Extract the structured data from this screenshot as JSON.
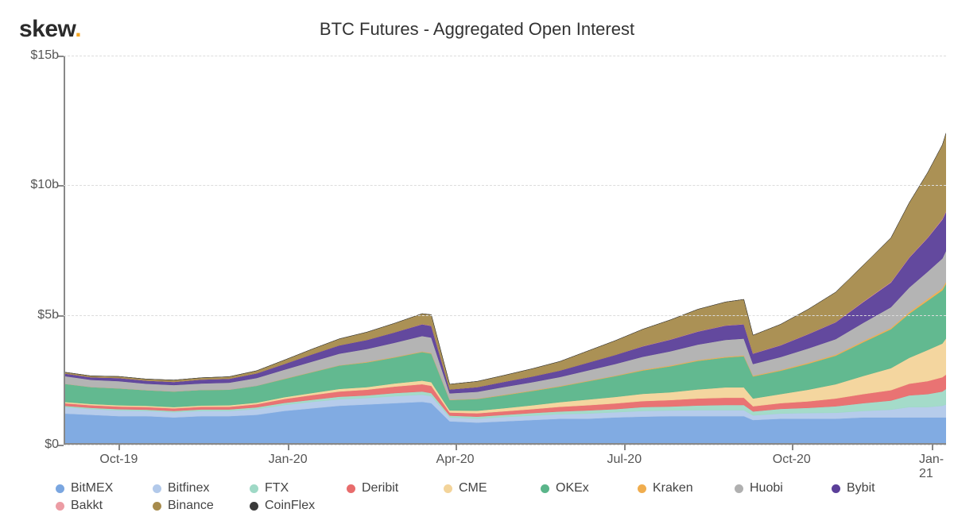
{
  "logo": {
    "text": "skew",
    "dot": "."
  },
  "title": "BTC Futures - Aggregated Open Interest",
  "chart": {
    "type": "area",
    "background_color": "#ffffff",
    "grid_color": "#dcdcdc",
    "axis_color": "#888888",
    "text_color": "#555555",
    "title_fontsize": 22,
    "axis_fontsize": 16,
    "legend_fontsize": 16,
    "y": {
      "min": 0,
      "max": 15,
      "ticks": [
        0,
        5,
        10,
        15
      ],
      "tick_labels": [
        "$0",
        "$5b",
        "$10b",
        "$15b"
      ]
    },
    "x": {
      "min": 0,
      "max": 480,
      "ticks": [
        30,
        122,
        213,
        305,
        396,
        472
      ],
      "tick_labels": [
        "Oct-19",
        "Jan-20",
        "Apr-20",
        "Jul-20",
        "Oct-20",
        "Jan-21"
      ]
    },
    "sample_x": [
      0,
      15,
      30,
      45,
      60,
      75,
      90,
      105,
      120,
      135,
      150,
      165,
      180,
      195,
      200,
      210,
      225,
      240,
      255,
      270,
      285,
      300,
      315,
      330,
      345,
      360,
      370,
      375,
      390,
      405,
      420,
      435,
      450,
      460,
      470,
      478,
      480
    ],
    "series": [
      {
        "key": "bitmex",
        "label": "BitMEX",
        "color": "#7aa6e0",
        "values": [
          1.2,
          1.15,
          1.1,
          1.1,
          1.05,
          1.1,
          1.1,
          1.15,
          1.3,
          1.4,
          1.5,
          1.55,
          1.6,
          1.65,
          1.6,
          0.9,
          0.85,
          0.9,
          0.95,
          1.0,
          1.0,
          1.05,
          1.08,
          1.1,
          1.1,
          1.1,
          1.1,
          0.95,
          1.0,
          1.0,
          1.0,
          1.05,
          1.05,
          1.05,
          1.05,
          1.05,
          1.05
        ]
      },
      {
        "key": "bitfinex",
        "label": "Bitfinex",
        "color": "#b2c9ea",
        "values": [
          0.25,
          0.22,
          0.22,
          0.2,
          0.2,
          0.2,
          0.2,
          0.22,
          0.23,
          0.25,
          0.25,
          0.25,
          0.27,
          0.28,
          0.27,
          0.15,
          0.15,
          0.17,
          0.17,
          0.18,
          0.2,
          0.2,
          0.22,
          0.22,
          0.23,
          0.23,
          0.23,
          0.18,
          0.2,
          0.22,
          0.23,
          0.25,
          0.3,
          0.4,
          0.4,
          0.45,
          0.5
        ]
      },
      {
        "key": "ftx",
        "label": "FTX",
        "color": "#9fd9c6",
        "values": [
          0.05,
          0.05,
          0.05,
          0.05,
          0.05,
          0.06,
          0.06,
          0.07,
          0.08,
          0.08,
          0.1,
          0.1,
          0.12,
          0.12,
          0.12,
          0.07,
          0.08,
          0.08,
          0.1,
          0.1,
          0.12,
          0.12,
          0.15,
          0.15,
          0.18,
          0.2,
          0.2,
          0.15,
          0.18,
          0.2,
          0.25,
          0.3,
          0.35,
          0.45,
          0.5,
          0.55,
          0.6
        ]
      },
      {
        "key": "deribit",
        "label": "Deribit",
        "color": "#e86c6c",
        "values": [
          0.1,
          0.1,
          0.1,
          0.1,
          0.1,
          0.1,
          0.1,
          0.12,
          0.15,
          0.18,
          0.2,
          0.22,
          0.25,
          0.28,
          0.28,
          0.12,
          0.13,
          0.14,
          0.15,
          0.18,
          0.2,
          0.22,
          0.23,
          0.25,
          0.27,
          0.28,
          0.28,
          0.2,
          0.22,
          0.25,
          0.3,
          0.35,
          0.4,
          0.45,
          0.5,
          0.55,
          0.55
        ]
      },
      {
        "key": "cme",
        "label": "CME",
        "color": "#f3d49a",
        "values": [
          0.05,
          0.05,
          0.05,
          0.05,
          0.05,
          0.05,
          0.06,
          0.06,
          0.07,
          0.08,
          0.1,
          0.1,
          0.12,
          0.14,
          0.14,
          0.08,
          0.1,
          0.12,
          0.15,
          0.18,
          0.22,
          0.25,
          0.28,
          0.3,
          0.35,
          0.4,
          0.4,
          0.3,
          0.35,
          0.45,
          0.55,
          0.7,
          0.85,
          1.0,
          1.2,
          1.3,
          1.4
        ]
      },
      {
        "key": "okex",
        "label": "OKEx",
        "color": "#5ab58a",
        "values": [
          0.7,
          0.65,
          0.65,
          0.6,
          0.6,
          0.6,
          0.6,
          0.65,
          0.7,
          0.8,
          0.9,
          0.95,
          1.0,
          1.1,
          1.1,
          0.4,
          0.45,
          0.5,
          0.55,
          0.6,
          0.7,
          0.8,
          0.9,
          1.0,
          1.1,
          1.15,
          1.2,
          0.85,
          0.9,
          1.0,
          1.1,
          1.3,
          1.5,
          1.7,
          1.9,
          2.05,
          2.1
        ]
      },
      {
        "key": "kraken",
        "label": "Kraken",
        "color": "#f0ad4e",
        "values": [
          0.0,
          0.0,
          0.0,
          0.0,
          0.0,
          0.0,
          0.0,
          0.0,
          0.01,
          0.01,
          0.01,
          0.02,
          0.02,
          0.02,
          0.02,
          0.01,
          0.01,
          0.02,
          0.02,
          0.02,
          0.02,
          0.02,
          0.03,
          0.03,
          0.03,
          0.03,
          0.03,
          0.03,
          0.03,
          0.04,
          0.04,
          0.05,
          0.05,
          0.06,
          0.07,
          0.08,
          0.08
        ]
      },
      {
        "key": "huobi",
        "label": "Huobi",
        "color": "#b0b0b0",
        "values": [
          0.3,
          0.28,
          0.28,
          0.25,
          0.25,
          0.25,
          0.27,
          0.3,
          0.35,
          0.4,
          0.45,
          0.5,
          0.55,
          0.6,
          0.6,
          0.25,
          0.27,
          0.3,
          0.32,
          0.35,
          0.4,
          0.45,
          0.5,
          0.55,
          0.6,
          0.65,
          0.65,
          0.45,
          0.5,
          0.55,
          0.6,
          0.7,
          0.8,
          0.95,
          1.05,
          1.15,
          1.2
        ]
      },
      {
        "key": "bybit",
        "label": "Bybit",
        "color": "#5b3f99",
        "values": [
          0.1,
          0.1,
          0.12,
          0.12,
          0.12,
          0.15,
          0.15,
          0.18,
          0.22,
          0.28,
          0.32,
          0.35,
          0.4,
          0.45,
          0.45,
          0.15,
          0.18,
          0.2,
          0.22,
          0.25,
          0.3,
          0.35,
          0.4,
          0.45,
          0.5,
          0.55,
          0.55,
          0.4,
          0.45,
          0.55,
          0.65,
          0.8,
          0.95,
          1.15,
          1.3,
          1.5,
          1.5
        ]
      },
      {
        "key": "bakkt",
        "label": "Bakkt",
        "color": "#ec9ca4",
        "values": [
          0.0,
          0.0,
          0.0,
          0.0,
          0.0,
          0.0,
          0.0,
          0.0,
          0.0,
          0.0,
          0.0,
          0.0,
          0.0,
          0.01,
          0.01,
          0.0,
          0.0,
          0.0,
          0.0,
          0.0,
          0.0,
          0.0,
          0.01,
          0.01,
          0.01,
          0.01,
          0.01,
          0.01,
          0.01,
          0.01,
          0.01,
          0.02,
          0.02,
          0.02,
          0.02,
          0.03,
          0.03
        ]
      },
      {
        "key": "binance",
        "label": "Binance",
        "color": "#a78b4c",
        "values": [
          0.05,
          0.05,
          0.06,
          0.06,
          0.07,
          0.07,
          0.08,
          0.1,
          0.15,
          0.2,
          0.25,
          0.3,
          0.35,
          0.4,
          0.42,
          0.2,
          0.22,
          0.25,
          0.3,
          0.35,
          0.45,
          0.55,
          0.65,
          0.75,
          0.85,
          0.9,
          0.95,
          0.7,
          0.8,
          0.95,
          1.15,
          1.4,
          1.7,
          2.1,
          2.5,
          2.85,
          3.0
        ]
      },
      {
        "key": "coinflex",
        "label": "CoinFlex",
        "color": "#3a3a3a",
        "values": [
          0.0,
          0.0,
          0.0,
          0.0,
          0.0,
          0.0,
          0.0,
          0.0,
          0.0,
          0.0,
          0.0,
          0.0,
          0.0,
          0.0,
          0.0,
          0.0,
          0.0,
          0.0,
          0.0,
          0.0,
          0.0,
          0.0,
          0.0,
          0.0,
          0.0,
          0.0,
          0.0,
          0.0,
          0.0,
          0.0,
          0.0,
          0.0,
          0.0,
          0.0,
          0.0,
          0.0,
          0.0
        ]
      }
    ],
    "legend_order": [
      "bitmex",
      "bitfinex",
      "ftx",
      "deribit",
      "cme",
      "okex",
      "kraken",
      "huobi",
      "bybit",
      "bakkt",
      "binance",
      "coinflex"
    ]
  }
}
